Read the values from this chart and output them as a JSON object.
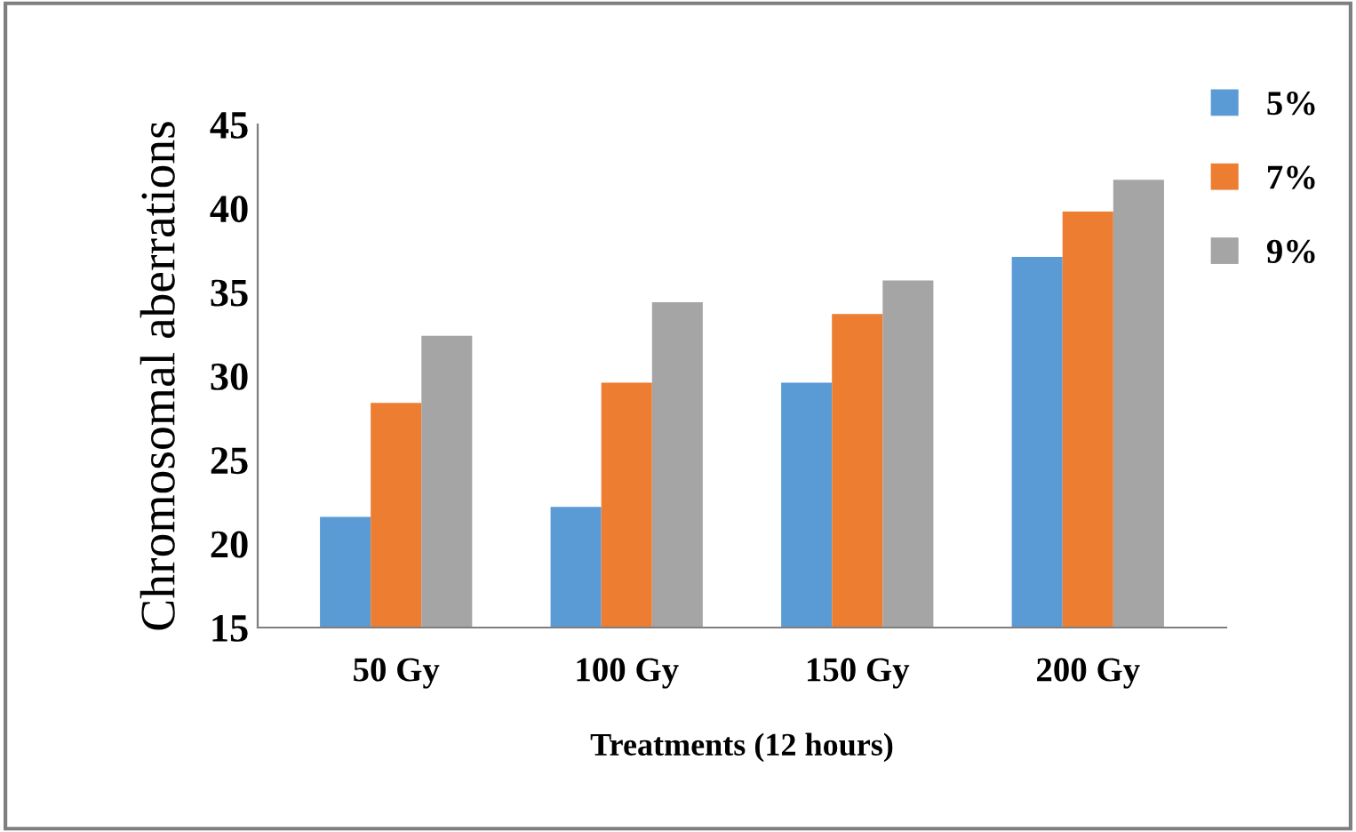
{
  "chart_data": {
    "type": "bar",
    "xlabel": "Treatments (12 hours)",
    "ylabel": "Chromosomal aberrations",
    "categories": [
      "50 Gy",
      "100 Gy",
      "150 Gy",
      "200 Gy"
    ],
    "series": [
      {
        "name": "5%",
        "color": "#5b9bd5",
        "values": [
          21.6,
          22.2,
          29.6,
          37.1
        ]
      },
      {
        "name": "7%",
        "color": "#ed7d31",
        "values": [
          28.4,
          29.6,
          33.7,
          39.8
        ]
      },
      {
        "name": "9%",
        "color": "#a5a5a5",
        "values": [
          32.4,
          34.4,
          35.7,
          41.7
        ]
      }
    ],
    "ylim": [
      15,
      45
    ],
    "yticks": [
      15,
      20,
      25,
      30,
      35,
      40,
      45
    ],
    "grid": false,
    "legend": "top right"
  }
}
